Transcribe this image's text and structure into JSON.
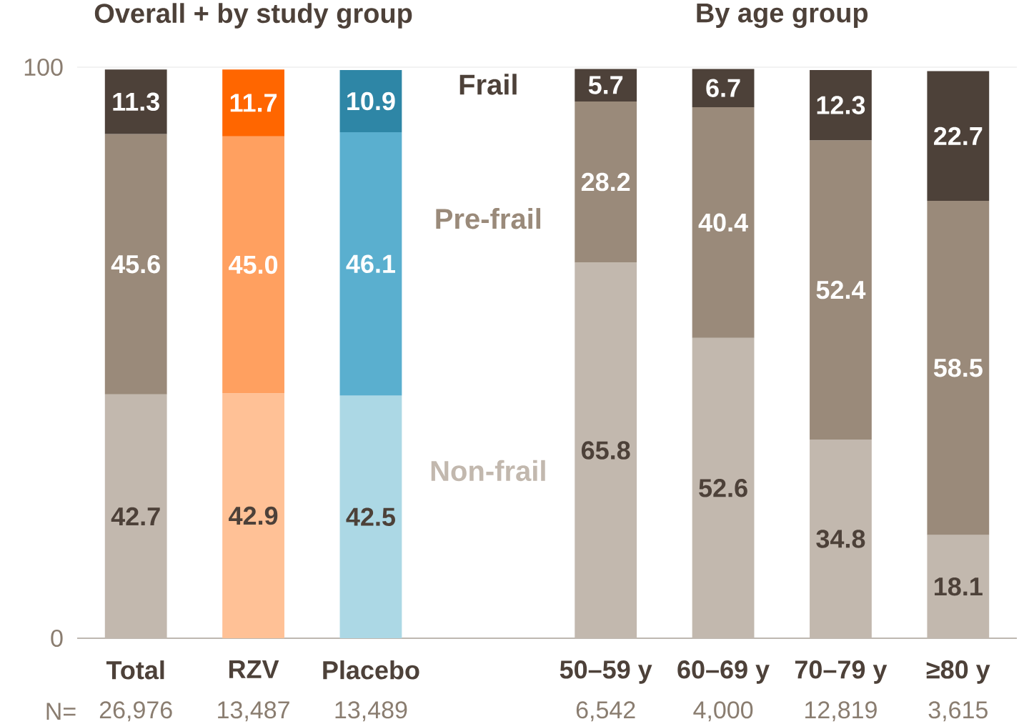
{
  "chart_data": {
    "type": "bar",
    "stacked": true,
    "categories": [
      "Total",
      "RZV",
      "Placebo",
      null,
      "50–59 y",
      "60–69 y",
      "70–79 y",
      "≥80 y"
    ],
    "series": [
      {
        "name": "Non-frail",
        "colors": [
          "#c2b8ae",
          "#ffc196",
          "#acd8e5",
          null,
          "#c2b8ae",
          "#c2b8ae",
          "#c2b8ae",
          "#c2b8ae"
        ],
        "values": [
          42.7,
          42.9,
          42.5,
          null,
          65.8,
          52.6,
          34.8,
          18.1
        ],
        "value_labels": [
          "42.7",
          "42.9",
          "42.5",
          null,
          "65.8",
          "52.6",
          "34.8",
          "18.1"
        ]
      },
      {
        "name": "Pre-frail",
        "colors": [
          "#9a8a7a",
          "#ffa060",
          "#5aafcf",
          null,
          "#9a8a7a",
          "#9a8a7a",
          "#9a8a7a",
          "#9a8a7a"
        ],
        "values": [
          45.6,
          45.0,
          46.1,
          null,
          28.2,
          40.4,
          52.4,
          58.5
        ],
        "value_labels": [
          "45.6",
          "45.0",
          "46.1",
          null,
          "28.2",
          "40.4",
          "52.4",
          "58.5"
        ]
      },
      {
        "name": "Frail",
        "colors": [
          "#4d4139",
          "#ff6600",
          "#2e86a6",
          null,
          "#4d4139",
          "#4d4139",
          "#4d4139",
          "#4d4139"
        ],
        "values": [
          11.3,
          11.7,
          10.9,
          null,
          5.7,
          6.7,
          12.3,
          22.7
        ],
        "value_labels": [
          "11.3",
          "11.7",
          "10.9",
          null,
          "5.7",
          "6.7",
          "12.3",
          "22.7"
        ]
      }
    ],
    "ylim": [
      0,
      100
    ],
    "yticks": [
      0,
      100
    ],
    "grid": "y",
    "annotations": [
      "Overall + by study group",
      "By age group",
      "N=",
      "26,976",
      "13,487",
      "13,489",
      "6,542",
      "4,000",
      "12,819",
      "3,615"
    ]
  }
}
